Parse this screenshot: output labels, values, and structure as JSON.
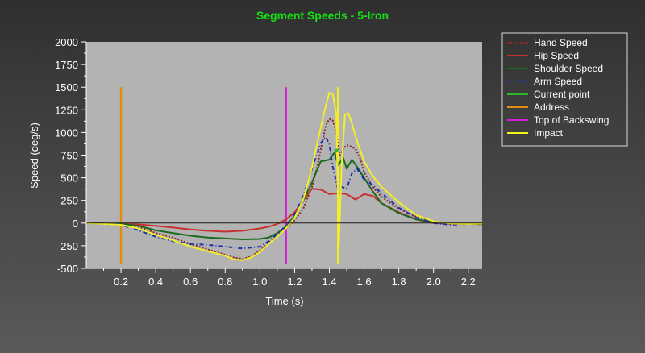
{
  "chart_data": {
    "type": "line",
    "title": "Segment Speeds - 5-Iron",
    "xlabel": "Time (s)",
    "ylabel": "Speed (deg/s)",
    "xlim": [
      0.0,
      2.28
    ],
    "ylim": [
      -500,
      2000
    ],
    "x_ticks": [
      0.2,
      0.4,
      0.6,
      0.8,
      1.0,
      1.2,
      1.4,
      1.6,
      1.8,
      2.0,
      2.2
    ],
    "y_ticks": [
      -500,
      -250,
      0,
      250,
      500,
      750,
      1000,
      1250,
      1500,
      1750,
      2000
    ],
    "grid": false,
    "legend_position": "right",
    "plot_background": "#b3b3b3",
    "series": [
      {
        "name": "Hand Speed",
        "color": "#8b2a2a",
        "dash": "2,2",
        "x": [
          0.0,
          0.1,
          0.2,
          0.3,
          0.4,
          0.5,
          0.6,
          0.7,
          0.8,
          0.85,
          0.9,
          0.95,
          1.0,
          1.05,
          1.1,
          1.15,
          1.2,
          1.25,
          1.3,
          1.33,
          1.36,
          1.38,
          1.4,
          1.42,
          1.44,
          1.46,
          1.48,
          1.5,
          1.52,
          1.55,
          1.58,
          1.6,
          1.65,
          1.7,
          1.8,
          1.9,
          2.0,
          2.1,
          2.2,
          2.28
        ],
        "values": [
          0,
          -10,
          -15,
          -40,
          -110,
          -160,
          -230,
          -290,
          -350,
          -380,
          -395,
          -370,
          -300,
          -220,
          -140,
          -60,
          30,
          160,
          400,
          620,
          900,
          1080,
          1150,
          1130,
          1000,
          750,
          820,
          860,
          850,
          820,
          700,
          560,
          400,
          290,
          160,
          70,
          20,
          -5,
          -10,
          -15
        ]
      },
      {
        "name": "Hip Speed",
        "color": "#c83030",
        "dash": "",
        "x": [
          0.0,
          0.1,
          0.2,
          0.3,
          0.4,
          0.5,
          0.6,
          0.7,
          0.8,
          0.9,
          1.0,
          1.05,
          1.1,
          1.15,
          1.2,
          1.25,
          1.3,
          1.35,
          1.4,
          1.45,
          1.5,
          1.55,
          1.6,
          1.65,
          1.7,
          1.8,
          1.9,
          2.0,
          2.1,
          2.2,
          2.28
        ],
        "values": [
          0,
          -5,
          -10,
          -15,
          -30,
          -50,
          -70,
          -85,
          -95,
          -85,
          -60,
          -40,
          -10,
          40,
          120,
          250,
          380,
          370,
          320,
          330,
          320,
          260,
          320,
          300,
          220,
          120,
          40,
          0,
          -10,
          -10,
          -5
        ]
      },
      {
        "name": "Shoulder Speed",
        "color": "#1d6b1d",
        "dash": "",
        "x": [
          0.0,
          0.1,
          0.2,
          0.3,
          0.4,
          0.5,
          0.6,
          0.7,
          0.8,
          0.9,
          1.0,
          1.05,
          1.1,
          1.15,
          1.2,
          1.25,
          1.3,
          1.35,
          1.4,
          1.43,
          1.45,
          1.48,
          1.5,
          1.53,
          1.56,
          1.6,
          1.65,
          1.7,
          1.8,
          1.9,
          2.0,
          2.1,
          2.2,
          2.28
        ],
        "values": [
          0,
          -5,
          -10,
          -30,
          -80,
          -110,
          -140,
          -160,
          -170,
          -180,
          -175,
          -160,
          -110,
          -40,
          80,
          250,
          450,
          680,
          700,
          780,
          640,
          720,
          600,
          700,
          620,
          500,
          350,
          220,
          110,
          40,
          10,
          -5,
          -10,
          -10
        ]
      },
      {
        "name": "Arm Speed",
        "color": "#1a2fb0",
        "dash": "5,3,1,3",
        "x": [
          0.0,
          0.1,
          0.2,
          0.3,
          0.4,
          0.5,
          0.6,
          0.7,
          0.8,
          0.9,
          1.0,
          1.05,
          1.1,
          1.15,
          1.2,
          1.25,
          1.3,
          1.35,
          1.38,
          1.4,
          1.42,
          1.45,
          1.47,
          1.5,
          1.53,
          1.56,
          1.6,
          1.65,
          1.7,
          1.8,
          1.9,
          2.0,
          2.1,
          2.2,
          2.28
        ],
        "values": [
          0,
          -10,
          -20,
          -80,
          -150,
          -200,
          -230,
          -240,
          -260,
          -280,
          -260,
          -200,
          -120,
          -30,
          100,
          300,
          600,
          880,
          950,
          870,
          620,
          360,
          400,
          380,
          550,
          600,
          480,
          420,
          330,
          170,
          60,
          0,
          -20,
          -10,
          0
        ]
      },
      {
        "name": "Current point",
        "color": "#2cb82c",
        "dash": "",
        "x": [
          1.44
        ],
        "values": [
          800
        ]
      },
      {
        "name": "Address",
        "color": "#e08c14",
        "dash": "",
        "vertical_line_x": 0.2
      },
      {
        "name": "Top of Backswing",
        "color": "#d41fd4",
        "dash": "",
        "vertical_line_x": 1.15
      },
      {
        "name": "Impact",
        "color": "#f2f21a",
        "dash": "",
        "vertical_line_x": 1.45
      },
      {
        "name": "Club Speed",
        "color": "#f2ee2a",
        "dash": "",
        "legend": false,
        "x": [
          0.0,
          0.1,
          0.2,
          0.3,
          0.4,
          0.5,
          0.6,
          0.7,
          0.8,
          0.85,
          0.9,
          0.95,
          1.0,
          1.05,
          1.1,
          1.15,
          1.2,
          1.25,
          1.3,
          1.35,
          1.38,
          1.4,
          1.42,
          1.44,
          1.455,
          1.47,
          1.49,
          1.51,
          1.53,
          1.56,
          1.6,
          1.65,
          1.7,
          1.8,
          1.9,
          2.0,
          2.1,
          2.2,
          2.28
        ],
        "values": [
          0,
          -10,
          -20,
          -60,
          -130,
          -190,
          -260,
          -310,
          -360,
          -400,
          -410,
          -380,
          -320,
          -230,
          -150,
          -60,
          60,
          260,
          620,
          1050,
          1300,
          1440,
          1420,
          1200,
          -260,
          620,
          1200,
          1210,
          1100,
          900,
          680,
          520,
          400,
          230,
          90,
          20,
          -5,
          -10,
          -5
        ]
      }
    ]
  }
}
